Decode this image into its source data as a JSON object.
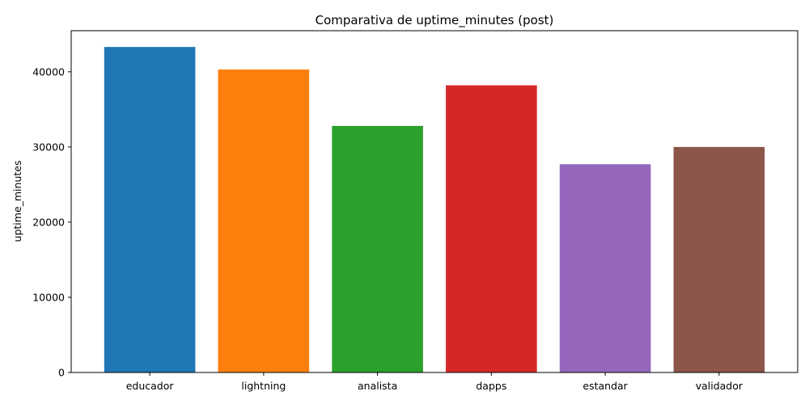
{
  "chart_data": {
    "type": "bar",
    "title": "Comparativa de uptime_minutes (post)",
    "xlabel": "",
    "ylabel": "uptime_minutes",
    "categories": [
      "educador",
      "lightning",
      "analista",
      "dapps",
      "estandar",
      "validador"
    ],
    "values": [
      43300,
      40300,
      32800,
      38200,
      27700,
      30000
    ],
    "colors": [
      "#1f77b4",
      "#ff7f0e",
      "#2ca02c",
      "#d62728",
      "#9467bd",
      "#8c564b"
    ],
    "ylim": [
      0,
      45465
    ],
    "yticks": [
      0,
      10000,
      20000,
      30000,
      40000
    ],
    "ytick_labels": [
      "0",
      "10000",
      "20000",
      "30000",
      "40000"
    ],
    "grid": false,
    "legend": "none"
  }
}
